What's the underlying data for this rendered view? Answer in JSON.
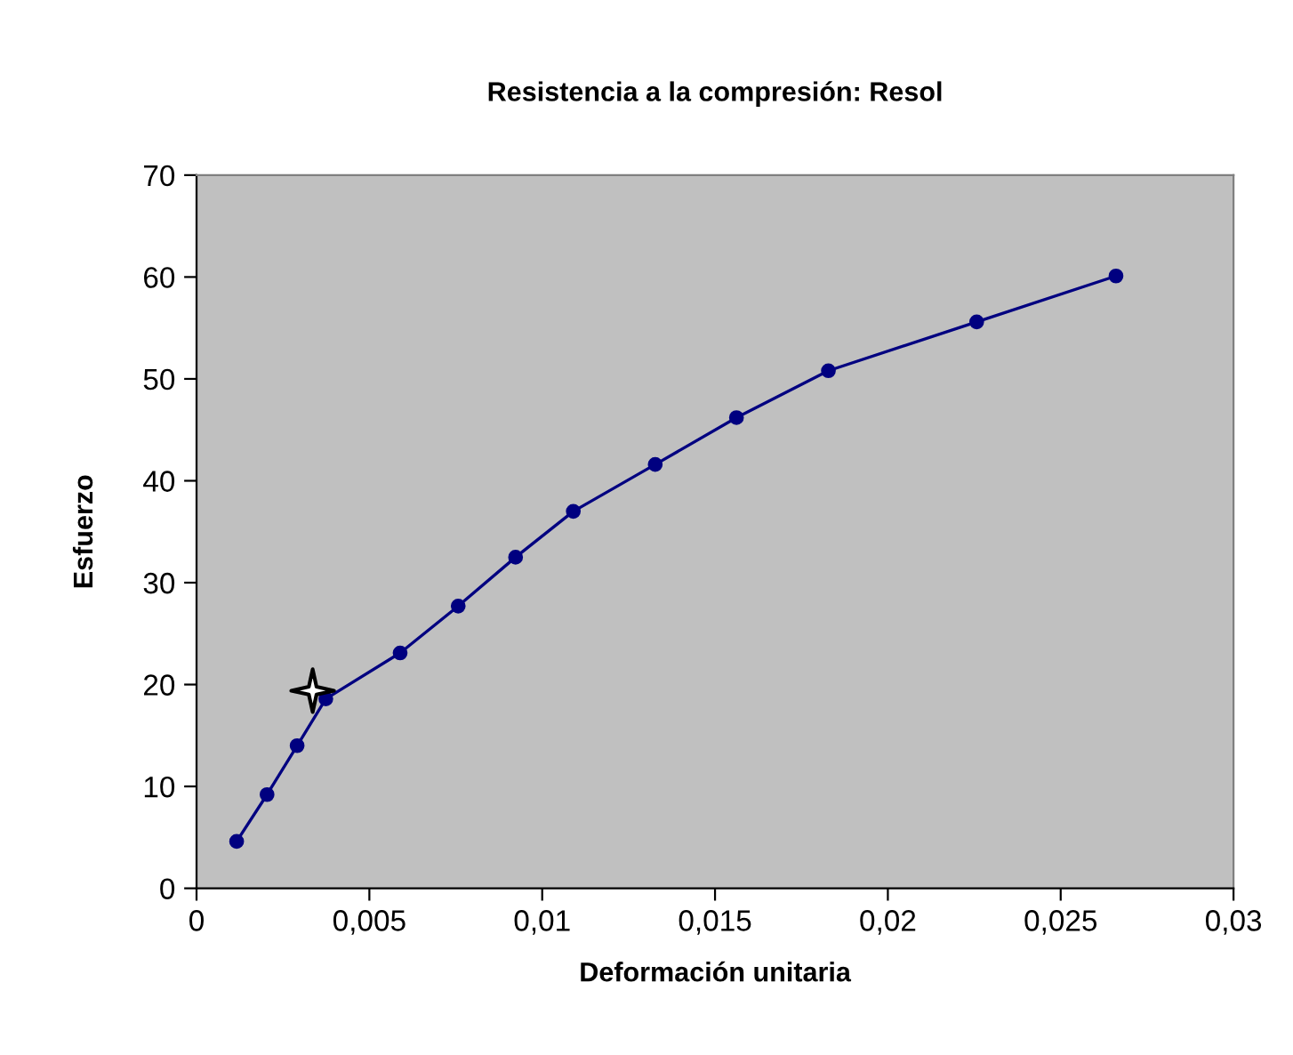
{
  "chart_data": {
    "type": "line",
    "title": "Resistencia a la compresión: Resol",
    "xlabel": "Deformación unitaria",
    "ylabel": "Esfuerzo",
    "series": [
      {
        "color": "#000080",
        "marker": "circle",
        "x": [
          0.00116,
          0.00204,
          0.00291,
          0.00374,
          0.00589,
          0.00757,
          0.00923,
          0.0109,
          0.01327,
          0.01562,
          0.01828,
          0.02257,
          0.0266
        ],
        "values": [
          4.6,
          9.2,
          14.0,
          18.6,
          23.1,
          27.7,
          32.5,
          37.0,
          41.6,
          46.2,
          50.8,
          55.6,
          60.1
        ]
      },
      {
        "type": "scatter",
        "color": "#000000",
        "marker": "star",
        "x": [
          0.00336
        ],
        "values": [
          19.4
        ]
      }
    ],
    "xlim": [
      0,
      0.03
    ],
    "xticks": [
      0,
      {
        "value": 0.005,
        "label": "0,005"
      },
      {
        "value": 0.01,
        "label": "0,01"
      },
      {
        "value": 0.015,
        "label": "0,015"
      },
      {
        "value": 0.02,
        "label": "0,02"
      },
      {
        "value": 0.025,
        "label": "0,025"
      },
      {
        "value": 0.03,
        "label": "0,03"
      }
    ],
    "ylim": [
      0,
      70
    ],
    "yticks": [
      0,
      10,
      20,
      30,
      40,
      50,
      60,
      70
    ],
    "grid": false
  }
}
